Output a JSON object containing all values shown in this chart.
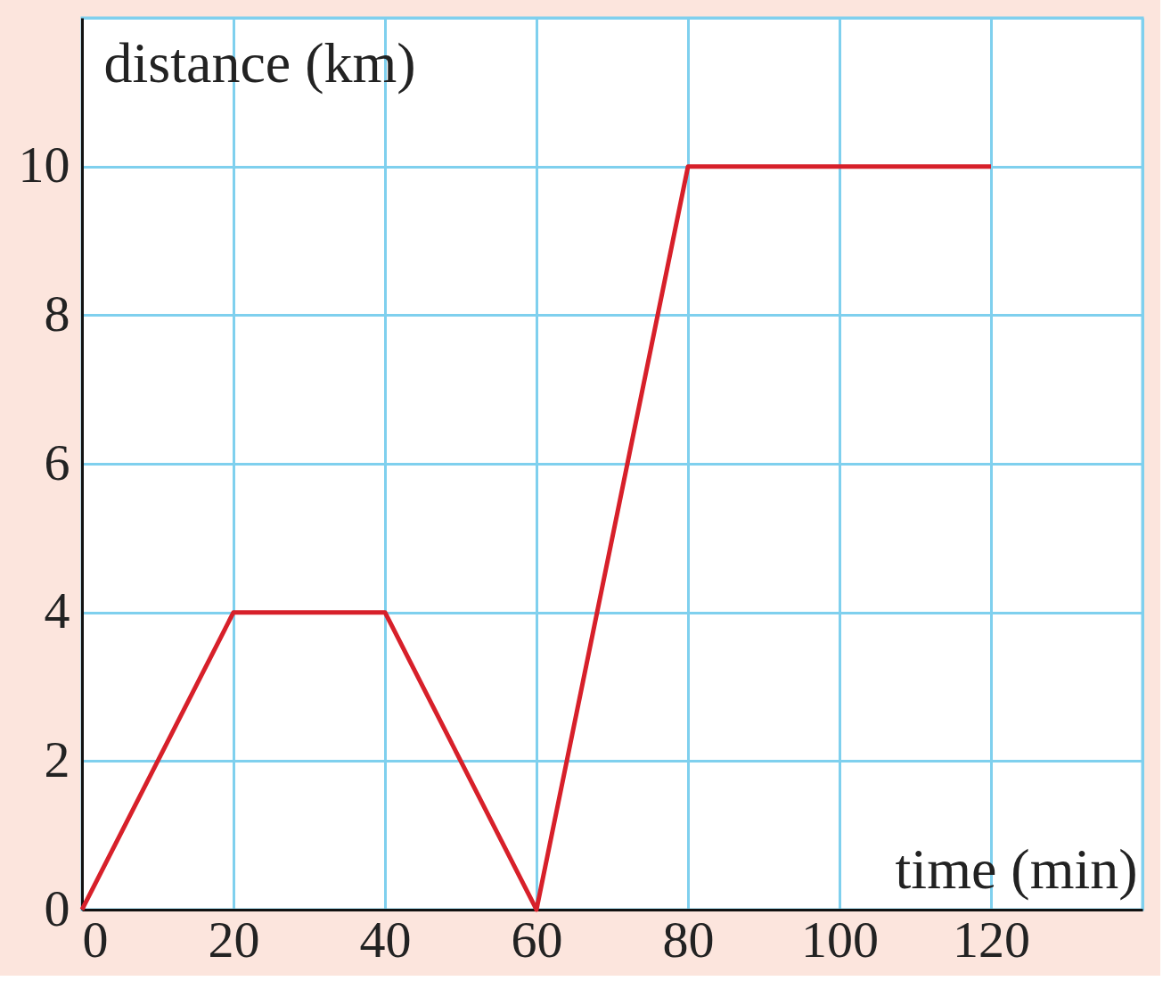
{
  "chart_data": {
    "type": "line",
    "xlabel": "time (min)",
    "ylabel": "distance (km)",
    "x": [
      0,
      20,
      40,
      60,
      80,
      120
    ],
    "series": [
      {
        "color": "#d7202a",
        "values": [
          0,
          4,
          4,
          0,
          10,
          10
        ]
      }
    ],
    "xlim": [
      0,
      140
    ],
    "ylim": [
      0,
      12
    ],
    "xticks": [
      0,
      20,
      40,
      60,
      80,
      100,
      120,
      {
        "value": 140,
        "label": null
      }
    ],
    "yticks": [
      0,
      2,
      4,
      6,
      8,
      10,
      {
        "value": 12,
        "label": null
      }
    ],
    "grid": true,
    "marker": "none",
    "line_style": "solid"
  }
}
